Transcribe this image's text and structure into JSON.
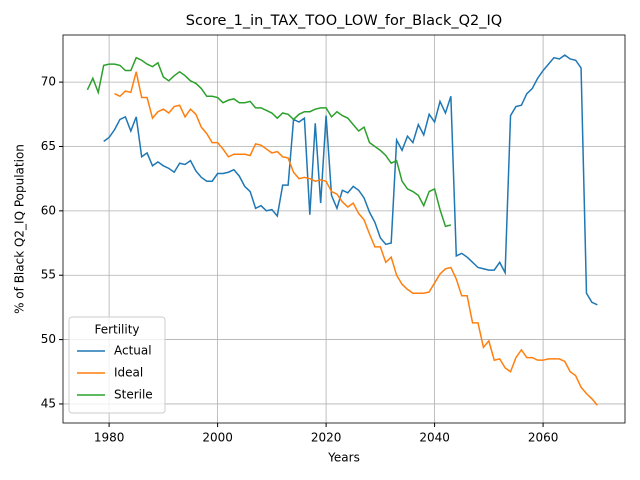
{
  "chart_data": {
    "type": "line",
    "title": "Score_1_in_TAX_TOO_LOW_for_Black_Q2_IQ",
    "x_label": "Years",
    "y_label": "% of Black Q2_IQ Population",
    "xlim": [
      1971.5,
      2075.1
    ],
    "ylim": [
      43.52,
      73.66
    ],
    "xticks": [
      1980,
      2000,
      2020,
      2040,
      2060
    ],
    "yticks": [
      45,
      50,
      55,
      60,
      65,
      70
    ],
    "grid": true,
    "legend_title": "Fertility",
    "legend_position": "lower left",
    "series": [
      {
        "name": "Actual",
        "color": "#1f77b4",
        "x": [
          1979,
          1980,
          1981,
          1982,
          1983,
          1984,
          1985,
          1986,
          1987,
          1988,
          1989,
          1990,
          1991,
          1992,
          1993,
          1994,
          1995,
          1996,
          1997,
          1998,
          1999,
          2000,
          2001,
          2002,
          2003,
          2004,
          2005,
          2006,
          2007,
          2008,
          2009,
          2010,
          2011,
          2012,
          2013,
          2014,
          2015,
          2016,
          2017,
          2018,
          2019,
          2020,
          2021,
          2022,
          2023,
          2024,
          2025,
          2026,
          2027,
          2028,
          2029,
          2030,
          2031,
          2032,
          2033,
          2034,
          2035,
          2036,
          2037,
          2038,
          2039,
          2040,
          2041,
          2042,
          2043,
          2044,
          2045,
          2046,
          2047,
          2048,
          2049,
          2050,
          2051,
          2052,
          2053,
          2054,
          2055,
          2056,
          2057,
          2058,
          2059,
          2060,
          2061,
          2062,
          2063,
          2064,
          2065,
          2066,
          2067,
          2068,
          2069,
          2070
        ],
        "values": [
          65.4,
          65.7,
          66.3,
          67.1,
          67.3,
          66.2,
          67.3,
          64.2,
          64.5,
          63.5,
          63.8,
          63.5,
          63.3,
          63.0,
          63.7,
          63.6,
          63.9,
          63.1,
          62.6,
          62.3,
          62.3,
          62.9,
          62.9,
          63.0,
          63.2,
          62.7,
          61.9,
          61.5,
          60.2,
          60.4,
          60.0,
          60.1,
          59.6,
          62.0,
          62.0,
          67.1,
          66.9,
          67.2,
          59.7,
          66.8,
          60.6,
          67.4,
          61.2,
          60.2,
          61.6,
          61.4,
          61.9,
          61.6,
          61.0,
          59.9,
          59.1,
          57.9,
          57.4,
          57.5,
          65.5,
          64.7,
          65.8,
          65.3,
          66.7,
          65.9,
          67.5,
          66.9,
          68.5,
          67.6,
          68.9,
          56.5,
          56.7,
          56.4,
          56.0,
          55.6,
          55.5,
          55.4,
          55.4,
          56.0,
          55.2,
          67.4,
          68.1,
          68.2,
          69.1,
          69.5,
          70.3,
          70.9,
          71.4,
          71.9,
          71.8,
          72.1,
          71.8,
          71.7,
          71.1,
          53.6,
          52.9,
          52.7
        ]
      },
      {
        "name": "Ideal",
        "color": "#ff7f0e",
        "x": [
          1981,
          1982,
          1983,
          1984,
          1985,
          1986,
          1987,
          1988,
          1989,
          1990,
          1991,
          1992,
          1993,
          1994,
          1995,
          1996,
          1997,
          1998,
          1999,
          2000,
          2001,
          2002,
          2003,
          2004,
          2005,
          2006,
          2007,
          2008,
          2009,
          2010,
          2011,
          2012,
          2013,
          2014,
          2015,
          2016,
          2017,
          2018,
          2019,
          2020,
          2021,
          2022,
          2023,
          2024,
          2025,
          2026,
          2027,
          2028,
          2029,
          2030,
          2031,
          2032,
          2033,
          2034,
          2035,
          2036,
          2037,
          2038,
          2039,
          2040,
          2041,
          2042,
          2043,
          2044,
          2045,
          2046,
          2047,
          2048,
          2049,
          2050,
          2051,
          2052,
          2053,
          2054,
          2055,
          2056,
          2057,
          2058,
          2059,
          2060,
          2061,
          2062,
          2063,
          2064,
          2065,
          2066,
          2067,
          2068,
          2069,
          2070
        ],
        "values": [
          69.1,
          68.9,
          69.3,
          69.2,
          70.8,
          68.8,
          68.8,
          67.2,
          67.7,
          67.9,
          67.6,
          68.1,
          68.2,
          67.3,
          67.9,
          67.5,
          66.5,
          66.0,
          65.3,
          65.3,
          64.8,
          64.2,
          64.4,
          64.4,
          64.4,
          64.3,
          65.2,
          65.1,
          64.8,
          64.5,
          64.6,
          64.2,
          64.1,
          63.0,
          62.5,
          62.6,
          62.5,
          62.3,
          62.4,
          62.3,
          61.5,
          61.3,
          60.7,
          60.3,
          60.6,
          59.8,
          59.3,
          58.2,
          57.2,
          57.2,
          56.0,
          56.4,
          55.0,
          54.3,
          53.9,
          53.6,
          53.6,
          53.6,
          53.7,
          54.4,
          55.1,
          55.5,
          55.6,
          54.7,
          53.4,
          53.4,
          51.3,
          51.3,
          49.4,
          49.9,
          48.4,
          48.5,
          47.8,
          47.5,
          48.6,
          49.2,
          48.6,
          48.6,
          48.4,
          48.4,
          48.5,
          48.5,
          48.5,
          48.3,
          47.5,
          47.2,
          46.3,
          45.8,
          45.4,
          44.9
        ]
      },
      {
        "name": "Sterile",
        "color": "#2ca02c",
        "x": [
          1976,
          1977,
          1978,
          1979,
          1980,
          1981,
          1982,
          1983,
          1984,
          1985,
          1986,
          1987,
          1988,
          1989,
          1990,
          1991,
          1992,
          1993,
          1994,
          1995,
          1996,
          1997,
          1998,
          1999,
          2000,
          2001,
          2002,
          2003,
          2004,
          2005,
          2006,
          2007,
          2008,
          2009,
          2010,
          2011,
          2012,
          2013,
          2014,
          2015,
          2016,
          2017,
          2018,
          2019,
          2020,
          2021,
          2022,
          2023,
          2024,
          2025,
          2026,
          2027,
          2028,
          2029,
          2030,
          2031,
          2032,
          2033,
          2034,
          2035,
          2036,
          2037,
          2038,
          2039,
          2040,
          2041,
          2042,
          2043
        ],
        "values": [
          69.4,
          70.3,
          69.2,
          71.3,
          71.4,
          71.4,
          71.3,
          70.9,
          70.9,
          71.9,
          71.7,
          71.4,
          71.2,
          71.5,
          70.4,
          70.1,
          70.5,
          70.8,
          70.5,
          70.1,
          69.9,
          69.5,
          68.9,
          68.9,
          68.8,
          68.4,
          68.6,
          68.7,
          68.4,
          68.4,
          68.5,
          68.0,
          68.0,
          67.8,
          67.6,
          67.2,
          67.6,
          67.5,
          67.1,
          67.5,
          67.7,
          67.7,
          67.9,
          68.0,
          68.0,
          67.3,
          67.7,
          67.4,
          67.2,
          66.7,
          66.2,
          66.5,
          65.3,
          65.0,
          64.7,
          64.3,
          63.7,
          63.9,
          62.3,
          61.7,
          61.5,
          61.2,
          60.4,
          61.5,
          61.7,
          60.1,
          58.8,
          58.9
        ]
      }
    ]
  }
}
